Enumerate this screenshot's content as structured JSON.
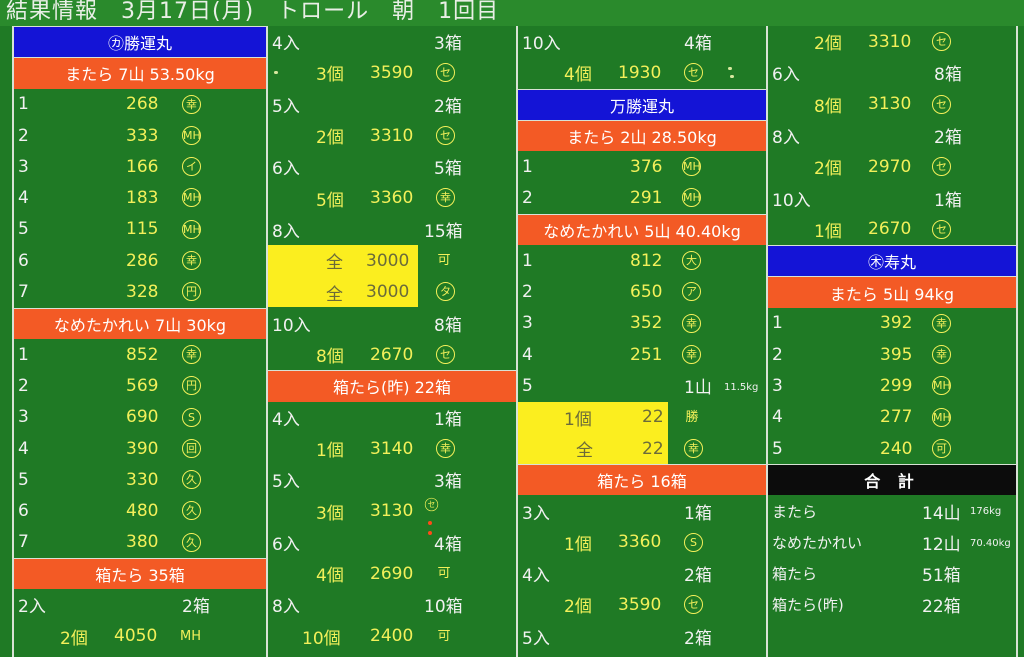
{
  "header": {
    "title": "結果情報　3月17日(月)　トロール　朝　1回目"
  },
  "col1": {
    "boat": "㋕勝運丸",
    "s1": "またら 7山 53.50kg",
    "s1_rows": [
      {
        "n": "1",
        "v": "268",
        "m": "幸"
      },
      {
        "n": "2",
        "v": "333",
        "m": "MH"
      },
      {
        "n": "3",
        "v": "166",
        "m": "イ"
      },
      {
        "n": "4",
        "v": "183",
        "m": "MH"
      },
      {
        "n": "5",
        "v": "115",
        "m": "MH"
      },
      {
        "n": "6",
        "v": "286",
        "m": "幸"
      },
      {
        "n": "7",
        "v": "328",
        "m": "円"
      }
    ],
    "s2": "なめたかれい 7山 30kg",
    "s2_rows": [
      {
        "n": "1",
        "v": "852",
        "m": "幸"
      },
      {
        "n": "2",
        "v": "569",
        "m": "円"
      },
      {
        "n": "3",
        "v": "690",
        "m": "S"
      },
      {
        "n": "4",
        "v": "390",
        "m": "回"
      },
      {
        "n": "5",
        "v": "330",
        "m": "久"
      },
      {
        "n": "6",
        "v": "480",
        "m": "久"
      },
      {
        "n": "7",
        "v": "380",
        "m": "久"
      }
    ],
    "s3": "箱たら 35箱",
    "r_a": {
      "l": "2入",
      "r": "2箱"
    },
    "r_b": {
      "c": "2個",
      "v": "4050",
      "m": "MH"
    }
  },
  "col2": {
    "r1": {
      "l": "4入",
      "r": "3箱"
    },
    "r2": {
      "c": "3個",
      "v": "3590",
      "m": "セ"
    },
    "r3": {
      "l": "5入",
      "r": "2箱"
    },
    "r4": {
      "c": "2個",
      "v": "3310",
      "m": "セ"
    },
    "r5": {
      "l": "6入",
      "r": "5箱"
    },
    "r6": {
      "c": "5個",
      "v": "3360",
      "m": "幸"
    },
    "r7": {
      "l": "8入",
      "r": "15箱"
    },
    "r8": {
      "c": "全",
      "v": "3000",
      "m": "可"
    },
    "r9": {
      "c": "全",
      "v": "3000",
      "m": "タ"
    },
    "r10": {
      "l": "10入",
      "r": "8箱"
    },
    "r11": {
      "c": "8個",
      "v": "2670",
      "m": "セ"
    },
    "s": "箱たら(昨) 22箱",
    "r12": {
      "l": "4入",
      "r": "1箱"
    },
    "r13": {
      "c": "1個",
      "v": "3140",
      "m": "幸"
    },
    "r14": {
      "l": "5入",
      "r": "3箱"
    },
    "r15": {
      "c": "3個",
      "v": "3130",
      "m": "セ"
    },
    "r16": {
      "l": "6入",
      "r": "4箱"
    },
    "r17": {
      "c": "4個",
      "v": "2690",
      "m": "可"
    },
    "r18": {
      "l": "8入",
      "r": "10箱"
    },
    "r19": {
      "c": "10個",
      "v": "2400",
      "m": "可"
    }
  },
  "col3": {
    "r1": {
      "l": "10入",
      "r": "4箱"
    },
    "r2": {
      "c": "4個",
      "v": "1930",
      "m": "セ"
    },
    "boat": "万勝運丸",
    "s1": "またら 2山 28.50kg",
    "s1_rows": [
      {
        "n": "1",
        "v": "376",
        "m": "MH"
      },
      {
        "n": "2",
        "v": "291",
        "m": "MH"
      }
    ],
    "s2": "なめたかれい 5山 40.40kg",
    "s2_rows": [
      {
        "n": "1",
        "v": "812",
        "m": "大"
      },
      {
        "n": "2",
        "v": "650",
        "m": "ア"
      },
      {
        "n": "3",
        "v": "352",
        "m": "幸"
      },
      {
        "n": "4",
        "v": "251",
        "m": "幸"
      }
    ],
    "r5": {
      "n": "5",
      "v": "1山",
      "w": "11.5kg"
    },
    "r6": {
      "c": "1個",
      "v": "22",
      "m": "勝"
    },
    "r7": {
      "c": "全",
      "v": "22",
      "m": "幸"
    },
    "s3": "箱たら 16箱",
    "r8": {
      "l": "3入",
      "r": "1箱"
    },
    "r9": {
      "c": "1個",
      "v": "3360",
      "m": "S"
    },
    "r10": {
      "l": "4入",
      "r": "2箱"
    },
    "r11": {
      "c": "2個",
      "v": "3590",
      "m": "セ"
    },
    "r12": {
      "l": "5入",
      "r": "2箱"
    }
  },
  "col4": {
    "r1": {
      "c": "2個",
      "v": "3310",
      "m": "セ"
    },
    "r2": {
      "l": "6入",
      "r": "8箱"
    },
    "r3": {
      "c": "8個",
      "v": "3130",
      "m": "セ"
    },
    "r4": {
      "l": "8入",
      "r": "2箱"
    },
    "r5": {
      "c": "2個",
      "v": "2970",
      "m": "セ"
    },
    "r6": {
      "l": "10入",
      "r": "1箱"
    },
    "r7": {
      "c": "1個",
      "v": "2670",
      "m": "セ"
    },
    "boat": "㊍寿丸",
    "s1": "またら 5山 94kg",
    "s1_rows": [
      {
        "n": "1",
        "v": "392",
        "m": "幸"
      },
      {
        "n": "2",
        "v": "395",
        "m": "幸"
      },
      {
        "n": "3",
        "v": "299",
        "m": "MH"
      },
      {
        "n": "4",
        "v": "277",
        "m": "MH"
      },
      {
        "n": "5",
        "v": "240",
        "m": "可"
      }
    ],
    "total": "合 計",
    "t_rows": [
      {
        "l": "またら",
        "v": "14山",
        "w": "176kg"
      },
      {
        "l": "なめたかれい",
        "v": "12山",
        "w": "70.40kg"
      },
      {
        "l": "箱たら",
        "v": "51箱",
        "w": ""
      },
      {
        "l": "箱たら(昨)",
        "v": "22箱",
        "w": ""
      }
    ]
  }
}
